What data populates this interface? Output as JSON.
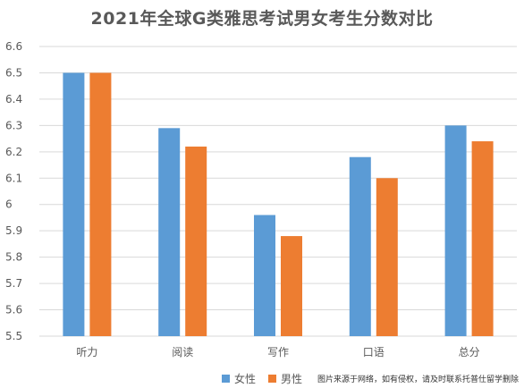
{
  "chart_data": {
    "type": "bar",
    "title": "2021年全球G类雅思考试男女考生分数对比",
    "categories": [
      "听力",
      "阅读",
      "写作",
      "口语",
      "总分"
    ],
    "series": [
      {
        "name": "女性",
        "color": "#5B9BD5",
        "values": [
          6.5,
          6.29,
          5.96,
          6.18,
          6.3
        ]
      },
      {
        "name": "男性",
        "color": "#ED7D31",
        "values": [
          6.5,
          6.22,
          5.88,
          6.1,
          6.24
        ]
      }
    ],
    "ylim": [
      5.5,
      6.6
    ],
    "yticks": [
      "5.5",
      "5.6",
      "5.7",
      "5.8",
      "5.9",
      "6",
      "6.1",
      "6.2",
      "6.3",
      "6.4",
      "6.5",
      "6.6"
    ],
    "grid": true,
    "legend": "bottom"
  },
  "watermark": "图片来源于网络，如有侵权，请及时联系托普仕留学删除"
}
